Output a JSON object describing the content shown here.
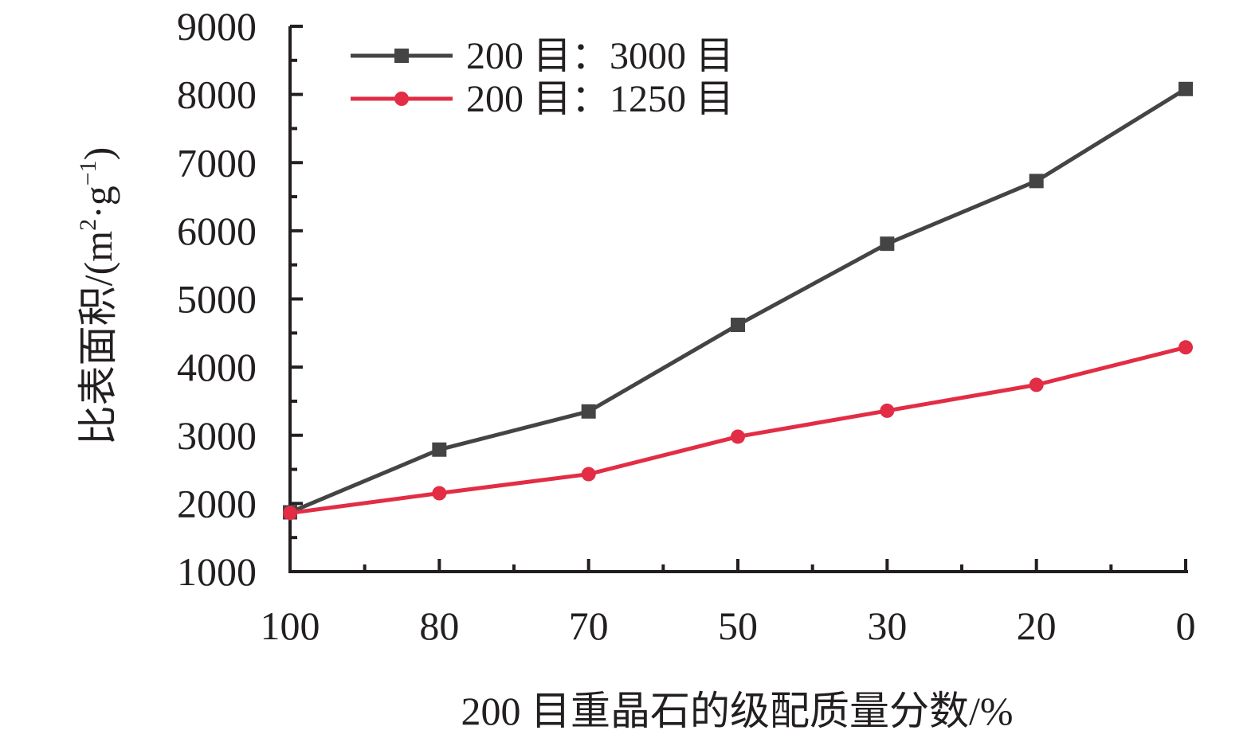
{
  "chart_data": {
    "type": "line",
    "categories": [
      "100",
      "80",
      "70",
      "50",
      "30",
      "20",
      "0"
    ],
    "series": [
      {
        "name": "200 目：3000 目",
        "color": "#444444",
        "marker": "square",
        "values": [
          1870,
          2790,
          3350,
          4620,
          5810,
          6730,
          8080
        ]
      },
      {
        "name": "200 目：1250 目",
        "color": "#e22d45",
        "marker": "circle",
        "values": [
          1860,
          2150,
          2430,
          2980,
          3360,
          3740,
          4290
        ]
      }
    ],
    "xlabel": "200 目重晶石的级配质量分数/%",
    "ylabel_prefix": "比表面积/(m",
    "ylabel_sup1": "2",
    "ylabel_mid": "·g",
    "ylabel_sup2": "−1",
    "ylabel_suffix": ")",
    "ylim": [
      1000,
      9000
    ],
    "yticks": [
      "1000",
      "2000",
      "3000",
      "4000",
      "5000",
      "6000",
      "7000",
      "8000",
      "9000"
    ],
    "legend_position": "top-left",
    "grid": false
  }
}
